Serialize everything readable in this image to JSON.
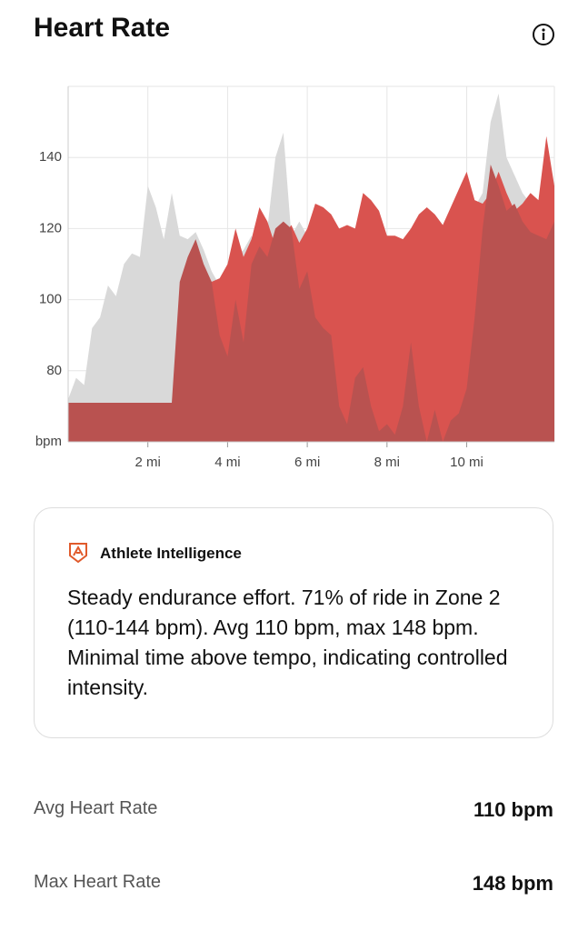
{
  "header": {
    "title": "Heart Rate"
  },
  "chart_data": {
    "type": "area",
    "x": [
      0,
      0.2,
      0.4,
      0.6,
      0.8,
      1,
      1.2,
      1.4,
      1.6,
      1.8,
      2,
      2.2,
      2.4,
      2.6,
      2.8,
      3,
      3.2,
      3.4,
      3.6,
      3.8,
      4,
      4.2,
      4.4,
      4.6,
      4.8,
      5,
      5.2,
      5.4,
      5.6,
      5.8,
      6,
      6.2,
      6.4,
      6.6,
      6.8,
      7,
      7.2,
      7.4,
      7.6,
      7.8,
      8,
      8.2,
      8.4,
      8.6,
      8.8,
      9,
      9.2,
      9.4,
      9.6,
      9.8,
      10,
      10.2,
      10.4,
      10.6,
      10.8,
      11,
      11.2,
      11.4,
      11.6,
      11.8,
      12,
      12.2
    ],
    "series": [
      {
        "color": "#d9d9d9",
        "values": [
          72,
          78,
          76,
          92,
          95,
          104,
          101,
          110,
          113,
          112,
          132,
          126,
          117,
          130,
          118,
          117,
          119,
          114,
          108,
          104,
          108,
          112,
          114,
          118,
          112,
          120,
          140,
          147,
          118,
          122,
          118,
          125,
          124,
          122,
          118,
          120,
          118,
          128,
          126,
          122,
          116,
          116,
          115,
          118,
          122,
          124,
          122,
          119,
          124,
          129,
          134,
          126,
          130,
          150,
          158,
          140,
          135,
          130,
          127,
          125,
          122,
          120
        ]
      },
      {
        "color": "#d9534f",
        "values": [
          null,
          null,
          null,
          null,
          null,
          null,
          null,
          null,
          null,
          null,
          null,
          null,
          null,
          null,
          null,
          null,
          110,
          108,
          105,
          106,
          110,
          120,
          112,
          117,
          126,
          122,
          115,
          118,
          121,
          116,
          120,
          127,
          126,
          124,
          120,
          121,
          120,
          130,
          128,
          125,
          118,
          118,
          117,
          120,
          124,
          126,
          124,
          121,
          126,
          131,
          136,
          128,
          127,
          130,
          136,
          130,
          125,
          127,
          130,
          128,
          146,
          132
        ]
      },
      {
        "color": "#b95250",
        "values": [
          71,
          71,
          71,
          71,
          71,
          71,
          71,
          71,
          71,
          71,
          71,
          71,
          71,
          71,
          105,
          112,
          117,
          110,
          105,
          90,
          84,
          100,
          88,
          110,
          115,
          112,
          120,
          122,
          120,
          103,
          108,
          95,
          92,
          90,
          70,
          65,
          78,
          81,
          70,
          63,
          65,
          62,
          70,
          88,
          70,
          60,
          69,
          60,
          66,
          68,
          75,
          95,
          120,
          138,
          132,
          125,
          127,
          122,
          119,
          118,
          117,
          122
        ]
      }
    ],
    "xlim": [
      0,
      12.2
    ],
    "xticks": [
      {
        "value": 2,
        "label": "2 mi"
      },
      {
        "value": 4,
        "label": "4 mi"
      },
      {
        "value": 6,
        "label": "6 mi"
      },
      {
        "value": 8,
        "label": "8 mi"
      },
      {
        "value": 10,
        "label": "10 mi"
      }
    ],
    "ylim": [
      60,
      160
    ],
    "yticks": [
      {
        "value": 60,
        "label": "bpm"
      },
      80,
      100,
      120,
      140
    ],
    "grid": true
  },
  "insight": {
    "title": "Athlete Intelligence",
    "text": "Steady endurance effort. 71% of ride in Zone 2 (110-144 bpm). Avg 110 bpm, max 148 bpm. Minimal time above tempo, indicating controlled intensity."
  },
  "stats": [
    {
      "label": "Avg Heart Rate",
      "value": "110 bpm"
    },
    {
      "label": "Max Heart Rate",
      "value": "148 bpm"
    }
  ]
}
